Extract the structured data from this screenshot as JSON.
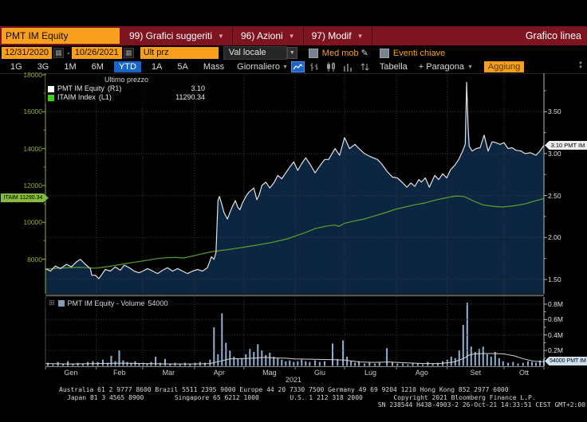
{
  "header": {
    "security": "PMT IM Equity",
    "menu_items": [
      "99) Grafici suggeriti",
      "96) Azioni",
      "97) Modif"
    ],
    "title": "Grafico linea"
  },
  "toolbar": {
    "start_date": "12/31/2020",
    "date_separator": "-",
    "end_date": "10/26/2021",
    "price_field": "Ult prz",
    "currency": "Val locale",
    "med_mob_label": "Med mob",
    "eventi_label": "Eventi chiave"
  },
  "period_bar": {
    "ranges": [
      "1G",
      "3G",
      "1M",
      "6M",
      "YTD",
      "1A",
      "5A",
      "Mass"
    ],
    "active_range": "YTD",
    "frequency": "Giornaliero",
    "tabella": "Tabella",
    "paragona": "+ Paragona",
    "aggiung": "Aggiung"
  },
  "footer": {
    "line1": "Australia 61 2 9777 8600 Brazil 5511 2395 9000 Europe 44 20 7330 7500 Germany 49 69 9204 1210 Hong Kong 852 2977 6000",
    "line2": "Japan 81 3 4565 8900        Singapore 65 6212 1000        U.S. 1 212 318 2000        Copyright 2021 Bloomberg Finance L.P.",
    "line3": "SN 238544 H438-4903-2 26-Oct-21 14:33:51 CEST GMT+2:00"
  },
  "chart_data": {
    "type": "line",
    "title": "Grafico linea",
    "x_range": [
      "12/31/2020",
      "10/26/2021"
    ],
    "x_months": [
      "Gen",
      "Feb",
      "Mar",
      "Apr",
      "Mag",
      "Giu",
      "Lug",
      "Ago",
      "Set",
      "Ott"
    ],
    "year_label": "2021",
    "month_boundaries_frac": [
      0,
      0.102,
      0.195,
      0.299,
      0.398,
      0.501,
      0.6,
      0.704,
      0.806,
      0.92,
      1.0
    ],
    "legend": {
      "header": "Ultimo prezzo",
      "series": [
        {
          "name": "PMT IM Equity",
          "axis": "(R1)",
          "value": "3.10",
          "color": "#ffffff"
        },
        {
          "name": "ITAIM Index",
          "axis": "(L1)",
          "value": "11290.34",
          "color": "#35d31c"
        }
      ]
    },
    "right_axis": {
      "tick_labels": [
        "3.50",
        "3.00",
        "2.50",
        "2.00",
        "1.50"
      ],
      "range": [
        1.25,
        4.0
      ],
      "badge": "3.10 PMT IM"
    },
    "left_axis": {
      "tick_labels": [
        "18000",
        "16000",
        "14000",
        "12000",
        "10000",
        "8000"
      ],
      "range": [
        8000,
        18000
      ],
      "badge": "ITAIM 11290.34"
    },
    "volume_axis": {
      "tick_labels": [
        "0.8M",
        "0.6M",
        "0.4M",
        "0.2M"
      ],
      "badge": "54000 PMT IM"
    },
    "volume_legend": {
      "label": "PMT IM Equity - Volume",
      "value": "54000"
    },
    "colors": {
      "price_line": "#e2e2e2",
      "area_fill": "#0d2644",
      "index_line": "#58a32e",
      "volume_bar": "#8fb2d4",
      "volume_ma": "#d4d4d4",
      "grid": "#3b3b3b",
      "left_axis": "#8fae3c",
      "right_axis": "#b8b8b8",
      "accent_orange": "#f8a01d",
      "accent_blue": "#1964c8"
    },
    "price_series": [
      [
        0.0,
        1.63
      ],
      [
        0.01,
        1.6
      ],
      [
        0.02,
        1.66
      ],
      [
        0.03,
        1.63
      ],
      [
        0.042,
        1.68
      ],
      [
        0.052,
        1.65
      ],
      [
        0.062,
        1.71
      ],
      [
        0.07,
        1.74
      ],
      [
        0.08,
        1.68
      ],
      [
        0.09,
        1.63
      ],
      [
        0.093,
        1.55
      ],
      [
        0.1,
        1.55
      ],
      [
        0.107,
        1.51
      ],
      [
        0.112,
        1.55
      ],
      [
        0.12,
        1.62
      ],
      [
        0.13,
        1.6
      ],
      [
        0.14,
        1.65
      ],
      [
        0.15,
        1.61
      ],
      [
        0.158,
        1.67
      ],
      [
        0.168,
        1.64
      ],
      [
        0.178,
        1.6
      ],
      [
        0.188,
        1.58
      ],
      [
        0.195,
        1.6
      ],
      [
        0.205,
        1.63
      ],
      [
        0.215,
        1.6
      ],
      [
        0.225,
        1.57
      ],
      [
        0.235,
        1.61
      ],
      [
        0.245,
        1.64
      ],
      [
        0.255,
        1.6
      ],
      [
        0.265,
        1.63
      ],
      [
        0.275,
        1.6
      ],
      [
        0.285,
        1.57
      ],
      [
        0.295,
        1.6
      ],
      [
        0.305,
        1.62
      ],
      [
        0.315,
        1.6
      ],
      [
        0.325,
        1.64
      ],
      [
        0.333,
        1.77
      ],
      [
        0.338,
        1.74
      ],
      [
        0.342,
        1.82
      ],
      [
        0.346,
        2.44
      ],
      [
        0.349,
        2.49
      ],
      [
        0.354,
        2.39
      ],
      [
        0.358,
        2.3
      ],
      [
        0.365,
        2.22
      ],
      [
        0.37,
        2.3
      ],
      [
        0.375,
        2.37
      ],
      [
        0.381,
        2.44
      ],
      [
        0.386,
        2.36
      ],
      [
        0.39,
        2.33
      ],
      [
        0.395,
        2.41
      ],
      [
        0.402,
        2.49
      ],
      [
        0.408,
        2.54
      ],
      [
        0.418,
        2.59
      ],
      [
        0.424,
        2.45
      ],
      [
        0.429,
        2.51
      ],
      [
        0.434,
        2.62
      ],
      [
        0.442,
        2.66
      ],
      [
        0.45,
        2.59
      ],
      [
        0.458,
        2.65
      ],
      [
        0.466,
        2.74
      ],
      [
        0.474,
        2.7
      ],
      [
        0.482,
        2.77
      ],
      [
        0.49,
        2.84
      ],
      [
        0.498,
        2.9
      ],
      [
        0.506,
        2.8
      ],
      [
        0.514,
        2.88
      ],
      [
        0.522,
        2.95
      ],
      [
        0.53,
        2.88
      ],
      [
        0.541,
        2.77
      ],
      [
        0.55,
        2.85
      ],
      [
        0.56,
        2.93
      ],
      [
        0.568,
        2.93
      ],
      [
        0.581,
        3.06
      ],
      [
        0.59,
        2.98
      ],
      [
        0.6,
        3.19
      ],
      [
        0.61,
        3.06
      ],
      [
        0.621,
        3.11
      ],
      [
        0.629,
        3.06
      ],
      [
        0.64,
        3.0
      ],
      [
        0.653,
        2.96
      ],
      [
        0.666,
        2.93
      ],
      [
        0.674,
        2.88
      ],
      [
        0.685,
        2.79
      ],
      [
        0.696,
        2.72
      ],
      [
        0.706,
        2.71
      ],
      [
        0.717,
        2.65
      ],
      [
        0.725,
        2.6
      ],
      [
        0.733,
        2.65
      ],
      [
        0.741,
        2.61
      ],
      [
        0.749,
        2.69
      ],
      [
        0.754,
        2.66
      ],
      [
        0.762,
        2.71
      ],
      [
        0.77,
        2.6
      ],
      [
        0.781,
        2.74
      ],
      [
        0.789,
        2.69
      ],
      [
        0.797,
        2.76
      ],
      [
        0.805,
        2.71
      ],
      [
        0.813,
        2.81
      ],
      [
        0.821,
        2.86
      ],
      [
        0.829,
        2.93
      ],
      [
        0.837,
        3.03
      ],
      [
        0.842,
        3.11
      ],
      [
        0.845,
        3.85
      ],
      [
        0.848,
        3.3
      ],
      [
        0.85,
        3.09
      ],
      [
        0.856,
        3.03
      ],
      [
        0.864,
        3.06
      ],
      [
        0.872,
        3.07
      ],
      [
        0.88,
        3.22
      ],
      [
        0.888,
        3.03
      ],
      [
        0.896,
        3.14
      ],
      [
        0.904,
        3.13
      ],
      [
        0.912,
        3.11
      ],
      [
        0.92,
        3.13
      ],
      [
        0.928,
        3.06
      ],
      [
        0.936,
        3.07
      ],
      [
        0.944,
        3.04
      ],
      [
        0.954,
        3.03
      ],
      [
        0.962,
        3.0
      ],
      [
        0.973,
        3.01
      ],
      [
        0.984,
        2.98
      ],
      [
        0.992,
        3.03
      ],
      [
        1.0,
        3.1
      ]
    ],
    "index_series": [
      [
        0.0,
        7450
      ],
      [
        0.03,
        7520
      ],
      [
        0.069,
        7560
      ],
      [
        0.101,
        7510
      ],
      [
        0.13,
        7620
      ],
      [
        0.149,
        7700
      ],
      [
        0.175,
        7820
      ],
      [
        0.195,
        7900
      ],
      [
        0.229,
        8050
      ],
      [
        0.261,
        8100
      ],
      [
        0.277,
        8060
      ],
      [
        0.299,
        8200
      ],
      [
        0.333,
        8400
      ],
      [
        0.346,
        8450
      ],
      [
        0.373,
        8550
      ],
      [
        0.398,
        8650
      ],
      [
        0.421,
        8750
      ],
      [
        0.453,
        8900
      ],
      [
        0.485,
        9100
      ],
      [
        0.501,
        9250
      ],
      [
        0.517,
        9400
      ],
      [
        0.541,
        9660
      ],
      [
        0.565,
        9800
      ],
      [
        0.581,
        9850
      ],
      [
        0.589,
        9780
      ],
      [
        0.6,
        9950
      ],
      [
        0.621,
        10080
      ],
      [
        0.64,
        10180
      ],
      [
        0.661,
        10350
      ],
      [
        0.685,
        10550
      ],
      [
        0.701,
        10700
      ],
      [
        0.725,
        10850
      ],
      [
        0.741,
        10950
      ],
      [
        0.761,
        11050
      ],
      [
        0.781,
        11200
      ],
      [
        0.808,
        11350
      ],
      [
        0.824,
        11430
      ],
      [
        0.84,
        11400
      ],
      [
        0.861,
        11130
      ],
      [
        0.877,
        10950
      ],
      [
        0.898,
        10870
      ],
      [
        0.917,
        10830
      ],
      [
        0.941,
        10900
      ],
      [
        0.962,
        11000
      ],
      [
        0.981,
        11150
      ],
      [
        1.0,
        11290
      ]
    ],
    "volume_bars": [
      [
        0.005,
        0.04
      ],
      [
        0.015,
        0.02
      ],
      [
        0.025,
        0.05
      ],
      [
        0.035,
        0.03
      ],
      [
        0.045,
        0.06
      ],
      [
        0.055,
        0.03
      ],
      [
        0.065,
        0.04
      ],
      [
        0.075,
        0.03
      ],
      [
        0.085,
        0.05
      ],
      [
        0.095,
        0.06
      ],
      [
        0.105,
        0.05
      ],
      [
        0.115,
        0.08
      ],
      [
        0.125,
        0.04
      ],
      [
        0.132,
        0.13
      ],
      [
        0.14,
        0.06
      ],
      [
        0.148,
        0.2
      ],
      [
        0.156,
        0.07
      ],
      [
        0.164,
        0.05
      ],
      [
        0.172,
        0.04
      ],
      [
        0.18,
        0.06
      ],
      [
        0.188,
        0.03
      ],
      [
        0.196,
        0.04
      ],
      [
        0.204,
        0.03
      ],
      [
        0.212,
        0.05
      ],
      [
        0.221,
        0.12
      ],
      [
        0.23,
        0.04
      ],
      [
        0.24,
        0.09
      ],
      [
        0.25,
        0.03
      ],
      [
        0.26,
        0.04
      ],
      [
        0.27,
        0.03
      ],
      [
        0.28,
        0.04
      ],
      [
        0.29,
        0.03
      ],
      [
        0.3,
        0.04
      ],
      [
        0.31,
        0.05
      ],
      [
        0.32,
        0.04
      ],
      [
        0.33,
        0.08
      ],
      [
        0.338,
        0.5
      ],
      [
        0.346,
        0.15
      ],
      [
        0.354,
        0.68
      ],
      [
        0.362,
        0.3
      ],
      [
        0.37,
        0.2
      ],
      [
        0.378,
        0.12
      ],
      [
        0.386,
        0.09
      ],
      [
        0.394,
        0.1
      ],
      [
        0.402,
        0.15
      ],
      [
        0.41,
        0.22
      ],
      [
        0.418,
        0.18
      ],
      [
        0.426,
        0.28
      ],
      [
        0.434,
        0.2
      ],
      [
        0.442,
        0.14
      ],
      [
        0.45,
        0.17
      ],
      [
        0.458,
        0.12
      ],
      [
        0.466,
        0.1
      ],
      [
        0.474,
        0.08
      ],
      [
        0.482,
        0.06
      ],
      [
        0.49,
        0.07
      ],
      [
        0.498,
        0.05
      ],
      [
        0.506,
        0.06
      ],
      [
        0.514,
        0.08
      ],
      [
        0.522,
        0.06
      ],
      [
        0.53,
        0.05
      ],
      [
        0.541,
        0.07
      ],
      [
        0.55,
        0.05
      ],
      [
        0.56,
        0.06
      ],
      [
        0.576,
        0.29
      ],
      [
        0.586,
        0.09
      ],
      [
        0.597,
        0.33
      ],
      [
        0.605,
        0.12
      ],
      [
        0.613,
        0.06
      ],
      [
        0.621,
        0.04
      ],
      [
        0.629,
        0.06
      ],
      [
        0.64,
        0.03
      ],
      [
        0.65,
        0.04
      ],
      [
        0.661,
        0.03
      ],
      [
        0.67,
        0.04
      ],
      [
        0.685,
        0.23
      ],
      [
        0.696,
        0.05
      ],
      [
        0.706,
        0.03
      ],
      [
        0.717,
        0.03
      ],
      [
        0.727,
        0.02
      ],
      [
        0.737,
        0.04
      ],
      [
        0.747,
        0.03
      ],
      [
        0.757,
        0.02
      ],
      [
        0.767,
        0.05
      ],
      [
        0.777,
        0.03
      ],
      [
        0.787,
        0.04
      ],
      [
        0.797,
        0.06
      ],
      [
        0.806,
        0.08
      ],
      [
        0.814,
        0.12
      ],
      [
        0.822,
        0.1
      ],
      [
        0.83,
        0.2
      ],
      [
        0.838,
        0.53
      ],
      [
        0.846,
        0.82
      ],
      [
        0.854,
        0.25
      ],
      [
        0.862,
        0.18
      ],
      [
        0.87,
        0.22
      ],
      [
        0.878,
        0.25
      ],
      [
        0.886,
        0.15
      ],
      [
        0.894,
        0.12
      ],
      [
        0.902,
        0.18
      ],
      [
        0.91,
        0.1
      ],
      [
        0.918,
        0.06
      ],
      [
        0.928,
        0.04
      ],
      [
        0.938,
        0.05
      ],
      [
        0.948,
        0.03
      ],
      [
        0.958,
        0.04
      ],
      [
        0.968,
        0.06
      ],
      [
        0.976,
        0.05
      ],
      [
        0.984,
        0.04
      ],
      [
        0.992,
        0.07
      ],
      [
        1.0,
        0.09
      ]
    ],
    "volume_ma": [
      [
        0.0,
        0.03
      ],
      [
        0.05,
        0.025
      ],
      [
        0.1,
        0.03
      ],
      [
        0.15,
        0.035
      ],
      [
        0.2,
        0.03
      ],
      [
        0.25,
        0.025
      ],
      [
        0.3,
        0.025
      ],
      [
        0.33,
        0.03
      ],
      [
        0.35,
        0.06
      ],
      [
        0.37,
        0.09
      ],
      [
        0.4,
        0.095
      ],
      [
        0.42,
        0.1
      ],
      [
        0.44,
        0.11
      ],
      [
        0.46,
        0.1
      ],
      [
        0.48,
        0.1
      ],
      [
        0.5,
        0.09
      ],
      [
        0.54,
        0.085
      ],
      [
        0.58,
        0.08
      ],
      [
        0.6,
        0.075
      ],
      [
        0.63,
        0.05
      ],
      [
        0.66,
        0.045
      ],
      [
        0.69,
        0.05
      ],
      [
        0.72,
        0.04
      ],
      [
        0.76,
        0.03
      ],
      [
        0.79,
        0.03
      ],
      [
        0.82,
        0.05
      ],
      [
        0.84,
        0.1
      ],
      [
        0.85,
        0.14
      ],
      [
        0.86,
        0.155
      ],
      [
        0.88,
        0.16
      ],
      [
        0.9,
        0.16
      ],
      [
        0.92,
        0.155
      ],
      [
        0.94,
        0.13
      ],
      [
        0.96,
        0.09
      ],
      [
        0.98,
        0.06
      ],
      [
        1.0,
        0.054
      ]
    ]
  }
}
